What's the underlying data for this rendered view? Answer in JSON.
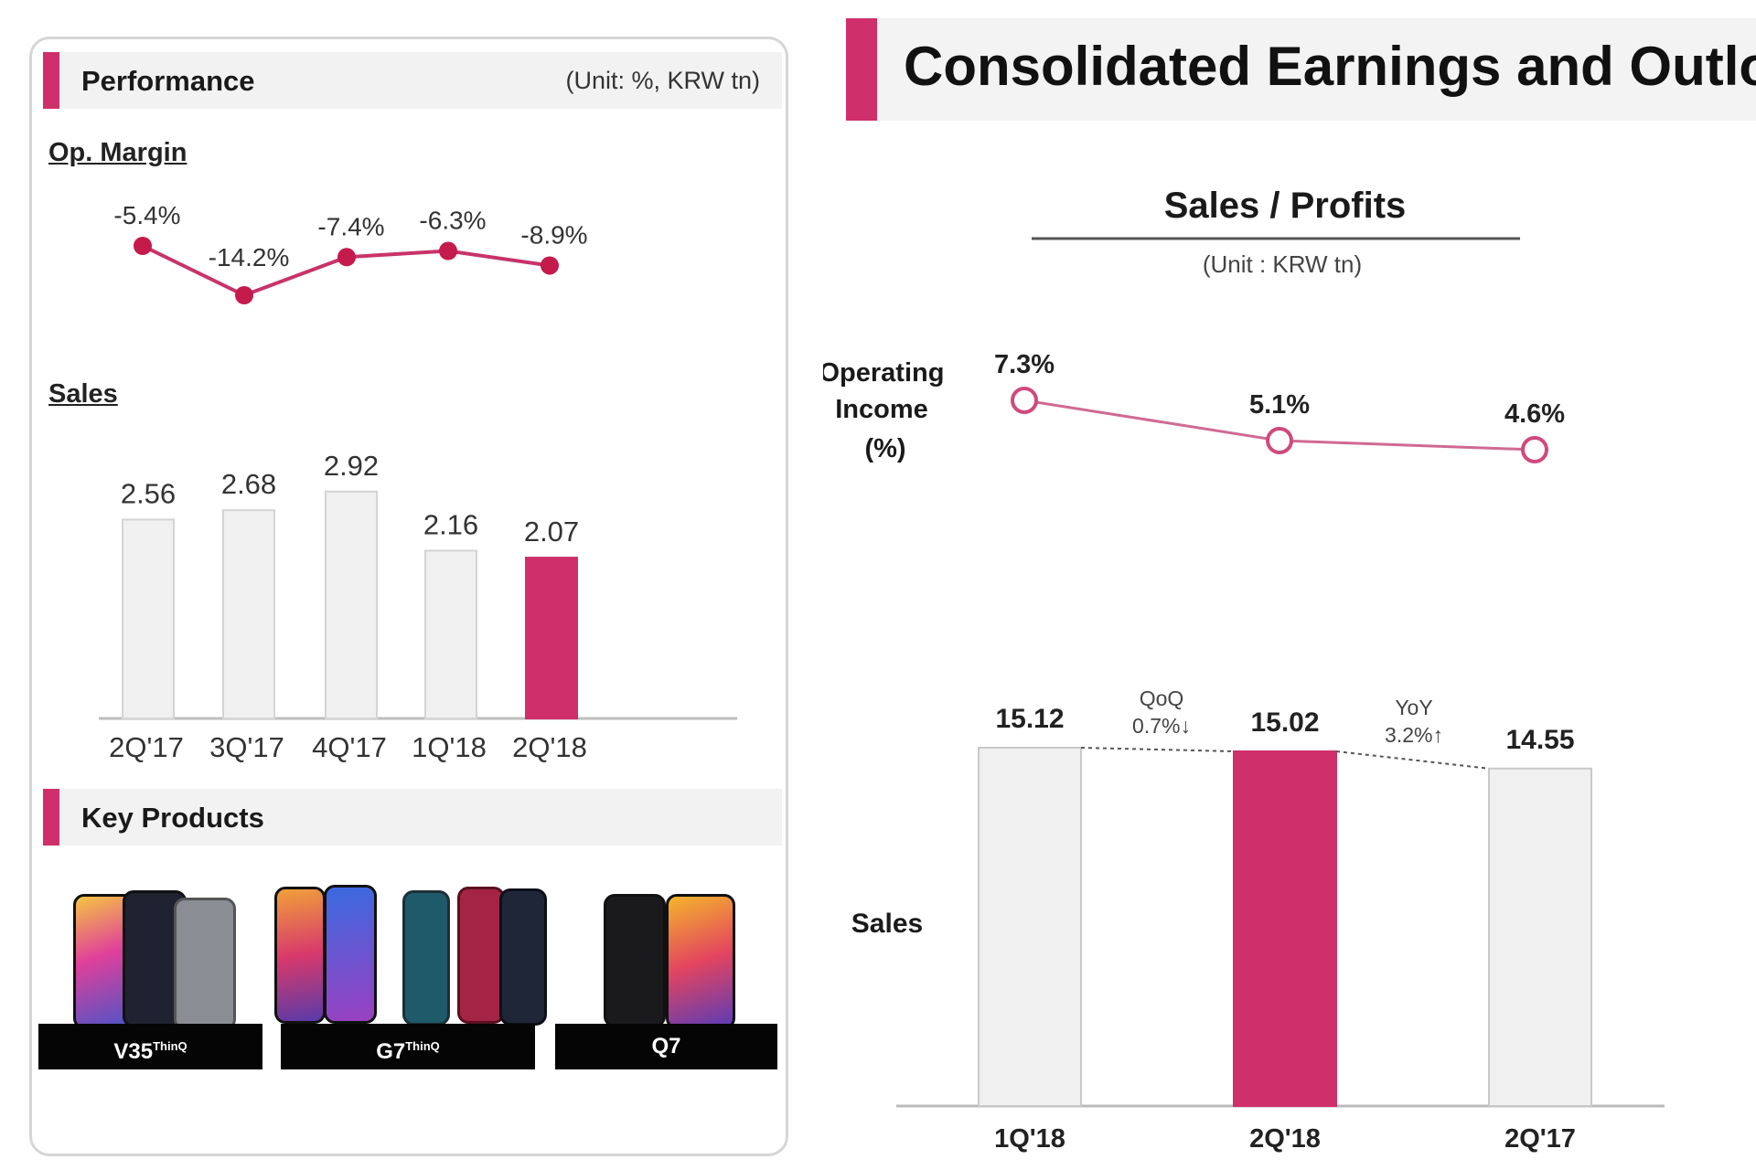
{
  "left_panel": {
    "performance_title": "Performance",
    "unit": "(Unit: %, KRW tn)",
    "op_margin_label": "Op. Margin",
    "sales_label": "Sales",
    "key_products_title": "Key Products",
    "products": [
      {
        "name": "V35",
        "suffix": "ThinQ"
      },
      {
        "name": "G7",
        "suffix": "ThinQ"
      },
      {
        "name": "Q7",
        "suffix": ""
      }
    ]
  },
  "right_panel": {
    "title": "Consolidated Earnings and Outlook",
    "chart_title": "Sales / Profits",
    "unit": "(Unit : KRW tn)",
    "op_income_label": [
      "Operating",
      "Income",
      "(%)"
    ],
    "sales_label": "Sales",
    "qoq": {
      "label": "QoQ",
      "value": "0.7%↓"
    },
    "yoy": {
      "label": "YoY",
      "value": "3.2%↑"
    }
  },
  "colors": {
    "accent": "#cf2f6a",
    "bar_gray": "#f0f0f0",
    "line": "#c8336a"
  },
  "chart_data": [
    {
      "type": "line",
      "categories": [
        "2Q'17",
        "3Q'17",
        "4Q'17",
        "1Q'18",
        "2Q'18"
      ],
      "values": [
        -5.4,
        -14.2,
        -7.4,
        -6.3,
        -8.9
      ],
      "labels": [
        "-5.4%",
        "-14.2%",
        "-7.4%",
        "-6.3%",
        "-8.9%"
      ],
      "title": "Op. Margin"
    },
    {
      "type": "bar",
      "categories": [
        "2Q'17",
        "3Q'17",
        "4Q'17",
        "1Q'18",
        "2Q'18"
      ],
      "values": [
        2.56,
        2.68,
        2.92,
        2.16,
        2.07
      ],
      "labels": [
        "2.56",
        "2.68",
        "2.92",
        "2.16",
        "2.07"
      ],
      "highlight_index": 4,
      "title": "Sales"
    },
    {
      "type": "line",
      "categories": [
        "1Q'18",
        "2Q'18",
        "2Q'17"
      ],
      "values": [
        7.3,
        5.1,
        4.6
      ],
      "labels": [
        "7.3%",
        "5.1%",
        "4.6%"
      ],
      "title": "Operating Income (%)"
    },
    {
      "type": "bar",
      "categories": [
        "1Q'18",
        "2Q'18",
        "2Q'17"
      ],
      "values": [
        15.12,
        15.02,
        14.55
      ],
      "labels": [
        "15.12",
        "15.02",
        "14.55"
      ],
      "highlight_index": 1,
      "title": "Sales"
    }
  ]
}
